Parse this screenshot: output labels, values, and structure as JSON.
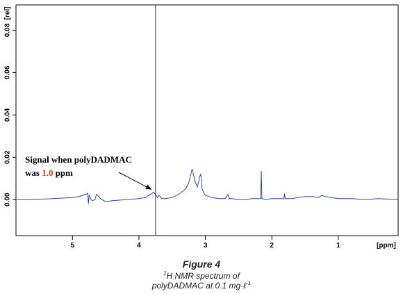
{
  "chart_data": {
    "type": "line",
    "title": "",
    "xlabel": "",
    "ylabel": "",
    "x_unit": "[ppm]",
    "y_unit": "[rel]",
    "xlim": [
      5.85,
      0.1
    ],
    "ylim": [
      -0.017,
      0.092
    ],
    "x_ticks": [
      5,
      4,
      3,
      2,
      1
    ],
    "x_tick_labels": [
      "5",
      "4",
      "3",
      "2",
      "1"
    ],
    "y_ticks": [
      0.0,
      0.02,
      0.04,
      0.06,
      0.08
    ],
    "y_tick_labels": [
      "0.00",
      "0.02",
      "0.04",
      "0.06",
      "0.08"
    ],
    "series_color": "#2b4aa6",
    "marker_line_x": 3.75,
    "series": [
      {
        "x": [
          5.85,
          5.6,
          5.3,
          5.0,
          4.9,
          4.8,
          4.77,
          4.76,
          4.75,
          4.74,
          4.72,
          4.7,
          4.66,
          4.64,
          4.62,
          4.58,
          4.5,
          4.4,
          4.2,
          4.0,
          3.9,
          3.85,
          3.8,
          3.78,
          3.75,
          3.72,
          3.7,
          3.68,
          3.66,
          3.6,
          3.5,
          3.4,
          3.3,
          3.25,
          3.22,
          3.2,
          3.18,
          3.15,
          3.12,
          3.1,
          3.08,
          3.07,
          3.06,
          3.05,
          3.02,
          3.0,
          2.9,
          2.8,
          2.7,
          2.66,
          2.65,
          2.64,
          2.6,
          2.5,
          2.4,
          2.3,
          2.2,
          2.17,
          2.16,
          2.15,
          2.14,
          2.1,
          2.0,
          1.9,
          1.82,
          1.81,
          1.8,
          1.79,
          1.7,
          1.6,
          1.5,
          1.45,
          1.4,
          1.3,
          1.25,
          1.2,
          1.1,
          1.0,
          0.9,
          0.8,
          0.6,
          0.4,
          0.1
        ],
        "y": [
          0.0,
          0.0,
          0.0005,
          0.001,
          0.0015,
          0.0025,
          0.003,
          -0.002,
          0.002,
          0.0015,
          0.0,
          -0.0005,
          0.0,
          0.0025,
          0.002,
          0.0005,
          -0.001,
          -0.0005,
          0.0,
          0.0005,
          0.001,
          0.002,
          0.003,
          0.0035,
          0.0025,
          0.001,
          0.002,
          0.0015,
          0.0005,
          0.0005,
          0.001,
          0.0025,
          0.005,
          0.008,
          0.012,
          0.0145,
          0.012,
          0.008,
          0.006,
          0.0085,
          0.0115,
          0.012,
          0.0095,
          0.005,
          0.003,
          0.002,
          0.001,
          0.0005,
          0.0005,
          0.0025,
          0.001,
          0.0005,
          0.0005,
          0.0,
          0.0,
          0.0005,
          0.0005,
          0.0005,
          0.0135,
          0.0005,
          0.0005,
          0.0,
          0.0005,
          0.0005,
          0.0005,
          0.0028,
          0.0005,
          0.0005,
          0.0005,
          0.001,
          0.0015,
          0.0015,
          0.0015,
          0.001,
          0.002,
          0.0015,
          0.001,
          0.0005,
          0.0005,
          0.0005,
          0.0,
          0.0005,
          0.0
        ]
      }
    ],
    "annotation": {
      "line1": "Signal when polyDADMAC",
      "line2_prefix": "was ",
      "line2_value": "1.0",
      "line2_suffix": " ppm",
      "point_x": 3.79,
      "point_y": 0.0035
    }
  },
  "caption": {
    "title": "Figure 4",
    "line1_sup": "1",
    "line1_text": "H NMR spectrum of",
    "line2_text": "polyDADMAC at 0.1 mg·ℓ",
    "line2_sup": "-1"
  }
}
